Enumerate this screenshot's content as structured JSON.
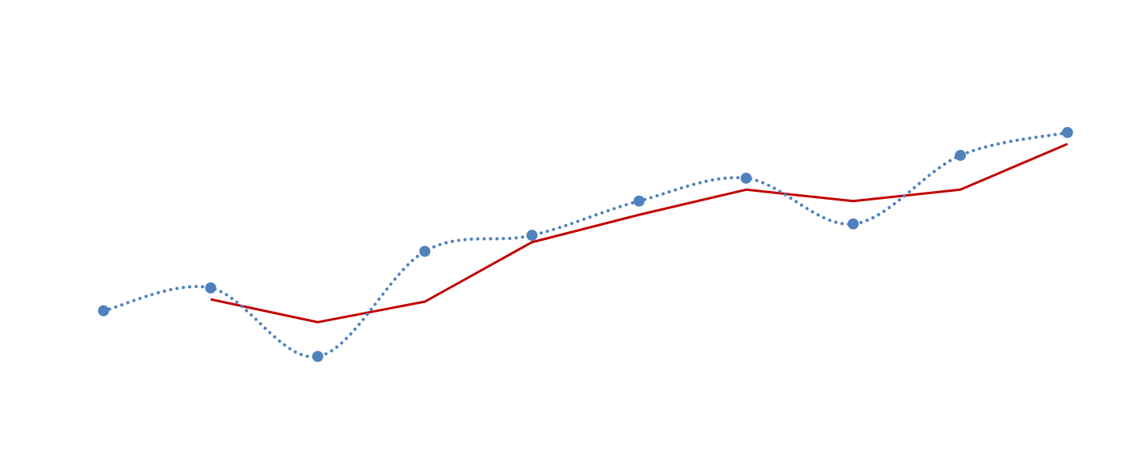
{
  "chart_data": {
    "type": "line",
    "title": "",
    "xlabel": "",
    "ylabel": "",
    "x": [
      1,
      2,
      3,
      4,
      5,
      6,
      7,
      8,
      9,
      10
    ],
    "xlim": [
      0.5,
      10.5
    ],
    "ylim": [
      0,
      100
    ],
    "grid": false,
    "series": [
      {
        "values": [
          32.0,
          37.0,
          22.0,
          45.0,
          48.5,
          56.0,
          61.0,
          51.0,
          66.0,
          71.0
        ],
        "style": "dotted-smooth",
        "markers": true,
        "color": "#4F81BD"
      },
      {
        "values": [
          null,
          34.5,
          29.5,
          34.0,
          47.0,
          53.0,
          58.5,
          56.0,
          58.5,
          68.5
        ],
        "style": "solid",
        "markers": false,
        "color": "#C00000"
      }
    ]
  }
}
